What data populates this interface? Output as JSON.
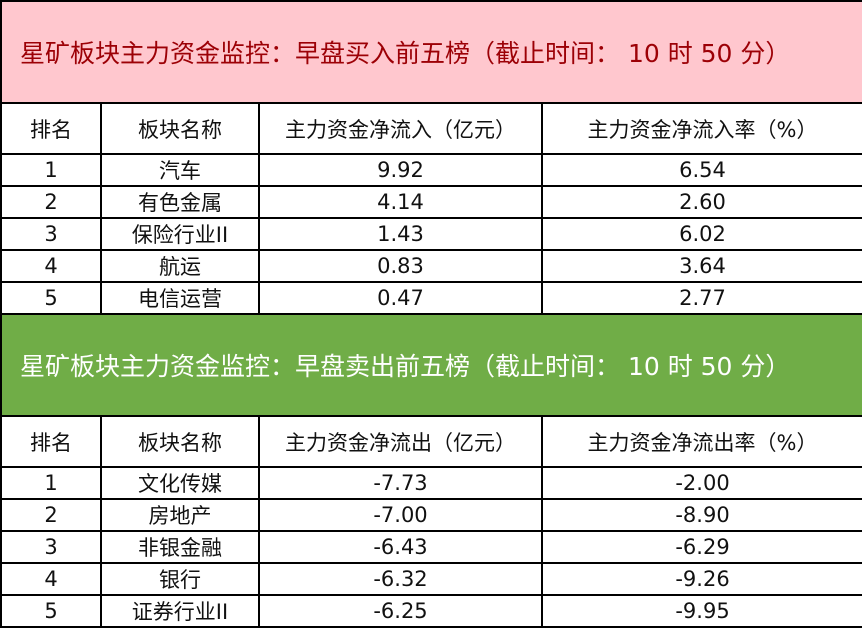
{
  "buy": {
    "title": "星矿板块主力资金监控：早盘买入前五榜（截止时间： 10 时 50 分）",
    "headers": [
      "排名",
      "板块名称",
      "主力资金净流入（亿元）",
      "主力资金净流入率（%）"
    ],
    "rows": [
      [
        "1",
        "汽车",
        "9.92",
        "6.54"
      ],
      [
        "2",
        "有色金属",
        "4.14",
        "2.60"
      ],
      [
        "3",
        "保险行业II",
        "1.43",
        "6.02"
      ],
      [
        "4",
        "航运",
        "0.83",
        "3.64"
      ],
      [
        "5",
        "电信运营",
        "0.47",
        "2.77"
      ]
    ]
  },
  "sell": {
    "title": "星矿板块主力资金监控：早盘卖出前五榜（截止时间： 10 时 50 分）",
    "headers": [
      "排名",
      "板块名称",
      "主力资金净流出（亿元）",
      "主力资金净流出率（%）"
    ],
    "rows": [
      [
        "1",
        "文化传媒",
        "-7.73",
        "-2.00"
      ],
      [
        "2",
        "房地产",
        "-7.00",
        "-8.90"
      ],
      [
        "3",
        "非银金融",
        "-6.43",
        "-6.29"
      ],
      [
        "4",
        "银行",
        "-6.32",
        "-9.26"
      ],
      [
        "5",
        "证券行业II",
        "-6.25",
        "-9.95"
      ]
    ]
  },
  "colors": {
    "buy_banner": "#ffc7ce",
    "buy_text": "#9c0006",
    "sell_banner": "#70ad47",
    "sell_text": "#ffffff"
  }
}
